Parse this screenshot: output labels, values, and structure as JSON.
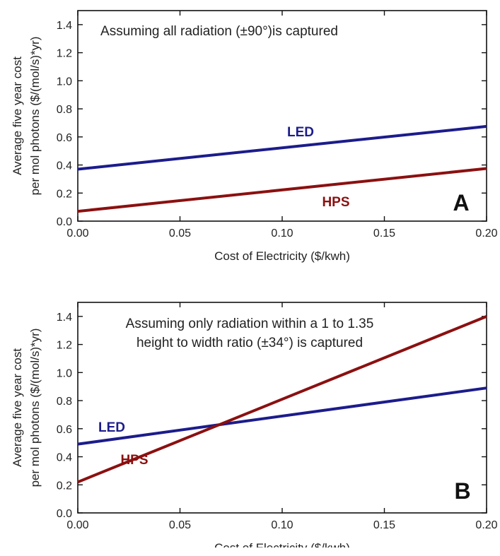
{
  "chart_data": [
    {
      "type": "line",
      "panel": "A",
      "annotation": [
        "Assuming all radiation (±90°)is captured"
      ],
      "xlabel": "Cost of Electricity ($/kwh)",
      "ylabel_lines": [
        "Average five year cost",
        "per mol photons ($/(mol/s)*yr)"
      ],
      "xlim": [
        0,
        0.2
      ],
      "ylim": [
        0,
        1.5
      ],
      "x_ticks": [
        "0.00",
        "0.05",
        "0.10",
        "0.15",
        "0.20"
      ],
      "y_ticks": [
        "0.0",
        "0.2",
        "0.4",
        "0.6",
        "0.8",
        "1.0",
        "1.2",
        "1.4"
      ],
      "grid": false,
      "series": [
        {
          "name": "LED",
          "color": "#1c1c8c",
          "x": [
            0.0,
            0.2
          ],
          "y": [
            0.37,
            0.675
          ]
        },
        {
          "name": "HPS",
          "color": "#8b1010",
          "x": [
            0.0,
            0.2
          ],
          "y": [
            0.07,
            0.375
          ]
        }
      ]
    },
    {
      "type": "line",
      "panel": "B",
      "annotation": [
        "Assuming only radiation within a 1 to 1.35",
        "height to width ratio (±34°) is captured"
      ],
      "xlabel": "Cost of Electricity ($/kwh)",
      "ylabel_lines": [
        "Average five year cost",
        "per mol photons ($/(mol/s)*yr)"
      ],
      "xlim": [
        0,
        0.2
      ],
      "ylim": [
        0,
        1.5
      ],
      "x_ticks": [
        "0.00",
        "0.05",
        "0.10",
        "0.15",
        "0.20"
      ],
      "y_ticks": [
        "0.0",
        "0.2",
        "0.4",
        "0.6",
        "0.8",
        "1.0",
        "1.2",
        "1.4"
      ],
      "grid": false,
      "series": [
        {
          "name": "LED",
          "color": "#1c1c8c",
          "x": [
            0.0,
            0.2
          ],
          "y": [
            0.49,
            0.89
          ]
        },
        {
          "name": "HPS",
          "color": "#8b1010",
          "x": [
            0.0,
            0.2
          ],
          "y": [
            0.22,
            1.4
          ]
        }
      ]
    }
  ]
}
